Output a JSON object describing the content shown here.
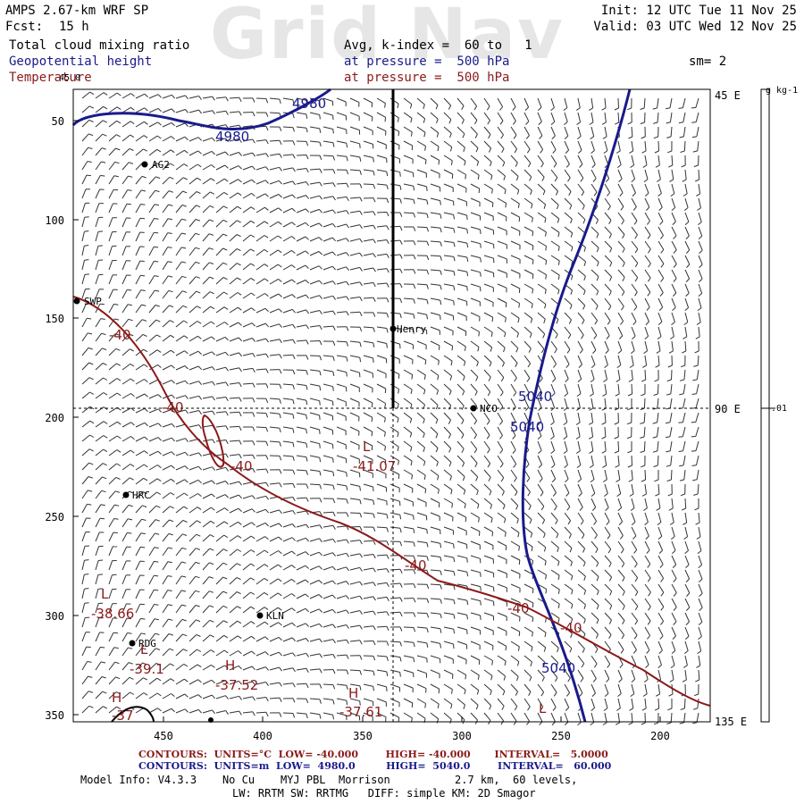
{
  "watermark": "Grid Nav",
  "header": {
    "model": "AMPS 2.67-km WRF SP",
    "fcst_label": "Fcst:",
    "fcst_value": "15 h",
    "init": "Init: 12 UTC Tue 11 Nov 25",
    "valid": "Valid: 03 UTC Wed 12 Nov 25",
    "field1": "Total cloud mixing ratio",
    "field2": "Geopotential height",
    "field3": "Temperature",
    "avg": "Avg, k-index =  60 to   1",
    "press2": "at pressure =  500 hPa",
    "press3": "at pressure =  500 hPa",
    "sm": "sm= 2"
  },
  "map": {
    "left_ticks": [
      "50",
      "100",
      "150",
      "200",
      "250",
      "300",
      "350"
    ],
    "bottom_ticks": [
      "450",
      "400",
      "350",
      "300",
      "250",
      "200"
    ],
    "right_labels": [
      "45 E",
      "90 E",
      "135 E"
    ],
    "top_label": "45 0",
    "colorbar_unit": "g kg-1",
    "colorbar_value": ".01",
    "stations": [
      {
        "name": "AG2"
      },
      {
        "name": "SWP"
      },
      {
        "name": "Henry"
      },
      {
        "name": "NCO"
      },
      {
        "name": "HRC"
      },
      {
        "name": "KLN"
      },
      {
        "name": "RDG"
      }
    ],
    "height_labels": [
      "4980",
      "4980",
      "5040",
      "5040",
      "5040"
    ],
    "temp_labels": [
      "-40",
      "-40",
      "-40",
      "-40",
      "-40",
      "-40"
    ],
    "extrema": [
      {
        "letter": "L",
        "value": "-41.07"
      },
      {
        "letter": "L",
        "value": "-38.66"
      },
      {
        "letter": "L",
        "value": "-39.1"
      },
      {
        "letter": "H",
        "value": "-37.52"
      },
      {
        "letter": "H",
        "value": "-37.61"
      },
      {
        "letter": "H",
        "value": "-37"
      },
      {
        "letter": "L",
        "value": ""
      }
    ]
  },
  "footer": {
    "line1": "CONTOURS:  UNITS=°C  LOW= -40.000        HIGH= -40.000       INTERVAL=   5.0000",
    "line2": "CONTOURS:  UNITS=m  LOW=  4980.0         HIGH=  5040.0        INTERVAL=   60.000",
    "line3": "Model Info: V4.3.3    No Cu    MYJ PBL  Morrison          2.7 km,  60 levels,",
    "line4": "LW: RRTM SW: RRTMG   DIFF: simple KM: 2D Smagor"
  },
  "colors": {
    "height": "#1a1a8c",
    "temperature": "#8b1a1a"
  }
}
